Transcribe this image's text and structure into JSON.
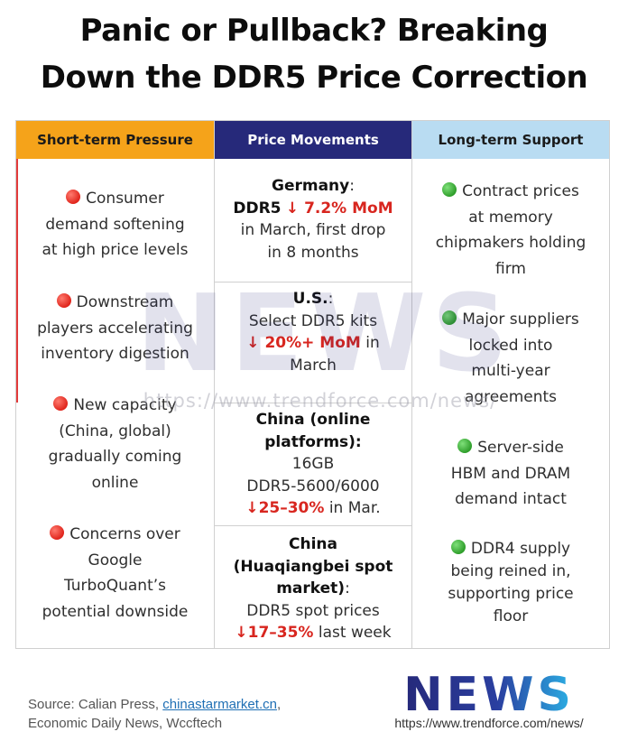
{
  "title": {
    "line1": "Panic or Pullback? Breaking",
    "line2": "Down the DDR5 Price Correction"
  },
  "columns": {
    "left_header": "Short-term Pressure",
    "mid_header": "Price Movements",
    "right_header": "Long-term Support"
  },
  "pressure_items": [
    {
      "icon": "red-circle-icon",
      "l1": "Consumer",
      "l2": "demand softening",
      "l3": "at high price levels"
    },
    {
      "icon": "red-circle-icon",
      "l1": "Downstream",
      "l2": "players accelerating",
      "l3": "inventory digestion"
    },
    {
      "icon": "red-circle-icon",
      "l1": "New capacity",
      "l2": "(China, global)",
      "l3": "gradually coming",
      "l4": "online"
    },
    {
      "icon": "red-circle-icon",
      "l1": "Concerns over",
      "l2": "Google",
      "l3": "TurboQuant’s",
      "l4": "potential downside"
    }
  ],
  "price_movements": [
    {
      "region": "Germany",
      "region_suffix": ":",
      "product": "DDR5",
      "change": "↓ 7.2% MoM",
      "tail1": "in March, first drop",
      "tail2": "in 8 months"
    },
    {
      "region": "U.S.",
      "region_suffix": ":",
      "product": "Select DDR5 kits",
      "change": "↓ 20%+ MoM",
      "tail1": "in",
      "tail2": "March"
    },
    {
      "region_l1": "China (online",
      "region_l2": "platforms):",
      "product_l1": "16GB",
      "product_l2": "DDR5-5600/6000",
      "change": "↓25–30%",
      "tail1": "in Mar."
    },
    {
      "region_l1": "China",
      "region_l2": "(Huaqiangbei spot",
      "region_l3": "market)",
      "region_suffix": ":",
      "product": "DDR5 spot prices",
      "change": "↓17–35%",
      "tail1": "last week"
    }
  ],
  "support_items": [
    {
      "icon": "green-circle-icon",
      "l1": "Contract prices",
      "l2": "at memory",
      "l3": "chipmakers holding",
      "l4": "firm"
    },
    {
      "icon": "green-circle-icon",
      "l1": "Major suppliers",
      "l2": "locked into",
      "l3": "multi-year",
      "l4": "agreements"
    },
    {
      "icon": "green-circle-icon",
      "l1": "Server-side",
      "l2": "HBM and DRAM",
      "l3": "demand intact"
    },
    {
      "icon": "green-circle-icon",
      "l1": "DDR4 supply",
      "l2": "being reined in,",
      "l3": "supporting price",
      "l4": "floor"
    }
  ],
  "watermark": {
    "word": "NEWS",
    "url": "https://www.trendforce.com/news/"
  },
  "source": {
    "prefix": "Source: Calian Press, ",
    "link": "chinastarmarket.cn",
    "suffix": ",",
    "line2": "Economic Daily News, Wccftech"
  },
  "logo": {
    "word": "NEWS",
    "url": "https://www.trendforce.com/news/"
  },
  "colors": {
    "pressure_header": "#f5a31a",
    "movements_header": "#26297a",
    "support_header": "#b9dcf2",
    "down_red": "#d8261f",
    "logo_navy": "#26297a",
    "logo_cyan": "#2bb3e6"
  }
}
